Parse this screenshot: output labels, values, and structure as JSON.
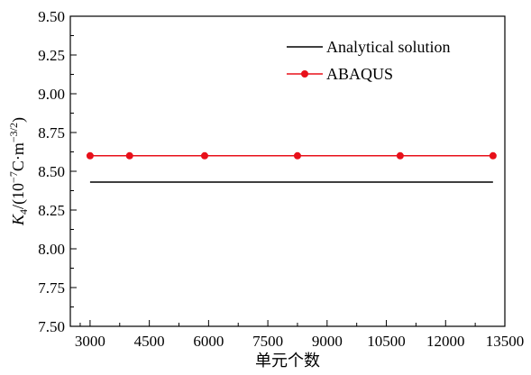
{
  "chart_data": {
    "type": "line",
    "xlabel": "单元个数",
    "ylabel_parts": {
      "symbol": "K",
      "subscript": "4",
      "unit_prefix": "/(10",
      "unit_exp1": "−7",
      "unit_mid": "C·m",
      "unit_exp2": "−3/2",
      "unit_suffix": ")"
    },
    "xlim": [
      2500,
      13500
    ],
    "ylim": [
      7.5,
      9.5
    ],
    "xticks": [
      3000,
      4500,
      6000,
      7500,
      9000,
      10500,
      12000,
      13500
    ],
    "xtick_labels": [
      "3000",
      "4500",
      "6000",
      "7500",
      "9000",
      "10500",
      "12000",
      "13500"
    ],
    "yticks": [
      7.5,
      7.75,
      8.0,
      8.25,
      8.5,
      8.75,
      9.0,
      9.25,
      9.5
    ],
    "ytick_labels": [
      "7.50",
      "7.75",
      "8.00",
      "8.25",
      "8.50",
      "8.75",
      "9.00",
      "9.25",
      "9.50"
    ],
    "legend_position": "top-right",
    "grid": false,
    "series": [
      {
        "name": "Analytical solution",
        "color": "#000000",
        "marker": "none",
        "x": [
          3000,
          13200
        ],
        "y": [
          8.43,
          8.43
        ]
      },
      {
        "name": "ABAQUS",
        "color": "#e8101a",
        "marker": "circle",
        "x": [
          3000,
          4000,
          5900,
          8250,
          10850,
          13200
        ],
        "y": [
          8.6,
          8.6,
          8.6,
          8.6,
          8.6,
          8.6
        ]
      }
    ]
  }
}
